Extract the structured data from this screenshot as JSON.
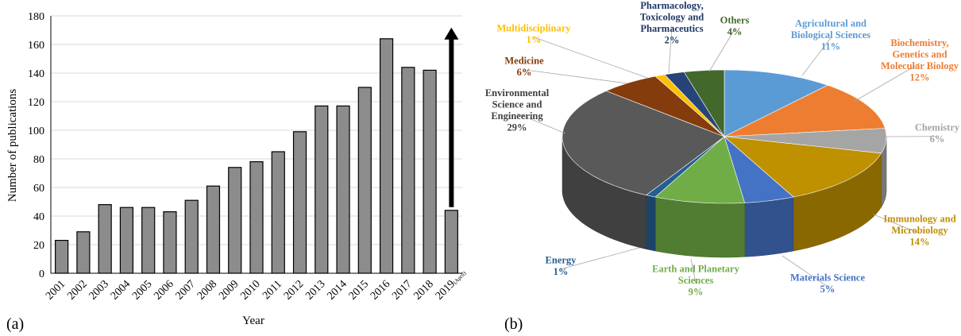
{
  "chart_data": [
    {
      "type": "bar",
      "panel_label": "(a)",
      "xlabel": "Year",
      "ylabel": "Number of publications",
      "ylim": [
        0,
        180
      ],
      "yticks": [
        0,
        20,
        40,
        60,
        80,
        100,
        120,
        140,
        160,
        180
      ],
      "categories": [
        "2001",
        "2002",
        "2003",
        "2004",
        "2005",
        "2006",
        "2007",
        "2008",
        "2009",
        "2010",
        "2011",
        "2012",
        "2013",
        "2014",
        "2015",
        "2016",
        "2017",
        "2018",
        "2019"
      ],
      "last_category_note": "(April)",
      "values": [
        23,
        29,
        48,
        46,
        46,
        43,
        51,
        61,
        74,
        78,
        85,
        99,
        117,
        117,
        130,
        164,
        144,
        142,
        44
      ],
      "bar_color": "#8c8c8c",
      "annotation": "upward arrow above 2019 bar"
    },
    {
      "type": "pie",
      "panel_label": "(b)",
      "slices": [
        {
          "label": "Agricultural and Biological Sciences",
          "value": 11,
          "pct": "11%",
          "color": "#5b9bd5"
        },
        {
          "label": "Biochemistry, Genetics and Molecular Biology",
          "value": 12,
          "pct": "12%",
          "color": "#ed7d31"
        },
        {
          "label": "Chemistry",
          "value": 6,
          "pct": "6%",
          "color": "#a5a5a5"
        },
        {
          "label": "Immunology and Microbiology",
          "value": 14,
          "pct": "14%",
          "color": "#bf9000"
        },
        {
          "label": "Materials Science",
          "value": 5,
          "pct": "5%",
          "color": "#4472c4"
        },
        {
          "label": "Earth and Planetary Sciences",
          "value": 9,
          "pct": "9%",
          "color": "#70ad47"
        },
        {
          "label": "Energy",
          "value": 1,
          "pct": "1%",
          "color": "#255e91"
        },
        {
          "label": "Environmental Science and Engineering",
          "value": 29,
          "pct": "29%",
          "color": "#595959"
        },
        {
          "label": "Medicine",
          "value": 6,
          "pct": "6%",
          "color": "#843c0c"
        },
        {
          "label": "Multidisciplinary",
          "value": 1,
          "pct": "1%",
          "color": "#ffc000"
        },
        {
          "label": "Pharmacology, Toxicology and Pharmaceutics",
          "value": 2,
          "pct": "2%",
          "color": "#264478"
        },
        {
          "label": "Others",
          "value": 4,
          "pct": "4%",
          "color": "#43682b"
        }
      ],
      "label_lines": [
        [
          "Agricultural and",
          "Biological Sciences"
        ],
        [
          "Biochemistry,",
          "Genetics and",
          "Molecular Biology"
        ],
        [
          "Chemistry"
        ],
        [
          "Immunology and",
          "Microbiology"
        ],
        [
          "Materials Science"
        ],
        [
          "Earth and Planetary",
          "Sciences"
        ],
        [
          "Energy"
        ],
        [
          "Environmental",
          "Science and",
          "Engineering"
        ],
        [
          "Medicine"
        ],
        [
          "Multidisciplinary"
        ],
        [
          "Pharmacology,",
          "Toxicology and",
          "Pharmaceutics"
        ],
        [
          "Others"
        ]
      ],
      "label_colors": [
        "#5b9bd5",
        "#ed7d31",
        "#a5a5a5",
        "#bf9000",
        "#4472c4",
        "#70ad47",
        "#255e91",
        "#404040",
        "#843c0c",
        "#ffc000",
        "#1f3864",
        "#43682b"
      ]
    }
  ]
}
